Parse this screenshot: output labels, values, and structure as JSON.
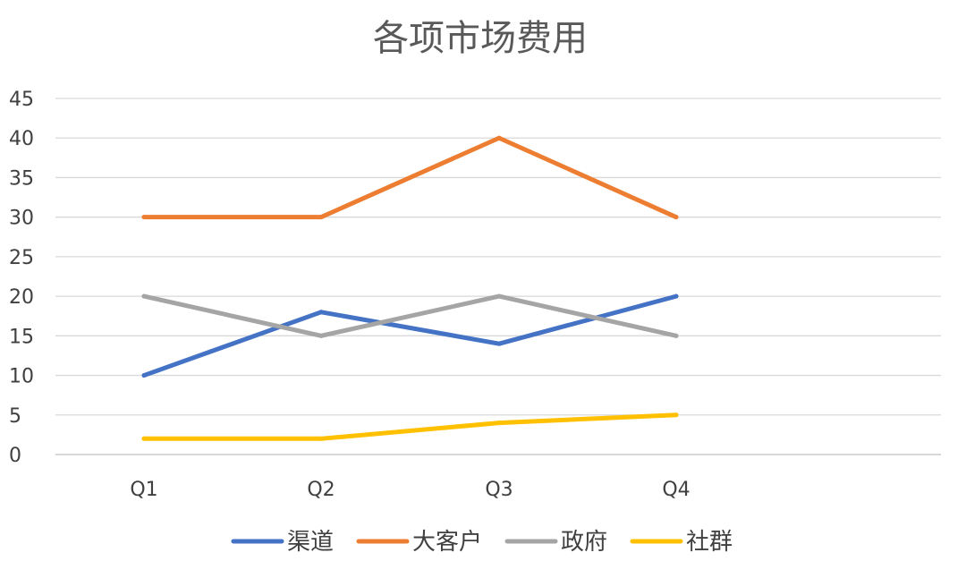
{
  "chart_data": {
    "type": "line",
    "title": "各项市场费用",
    "categories": [
      "Q1",
      "Q2",
      "Q3",
      "Q4"
    ],
    "ylim": [
      0,
      45
    ],
    "yticks": [
      0,
      5,
      10,
      15,
      20,
      25,
      30,
      35,
      40,
      45
    ],
    "grid": true,
    "legend_position": "bottom",
    "series": [
      {
        "name": "渠道",
        "values": [
          10,
          18,
          14,
          20
        ],
        "color": "#4472C4"
      },
      {
        "name": "大客户",
        "values": [
          30,
          30,
          40,
          30
        ],
        "color": "#ED7D31"
      },
      {
        "name": "政府",
        "values": [
          20,
          15,
          20,
          15
        ],
        "color": "#A5A5A5"
      },
      {
        "name": "社群",
        "values": [
          2,
          2,
          4,
          5
        ],
        "color": "#FFC000"
      }
    ]
  }
}
